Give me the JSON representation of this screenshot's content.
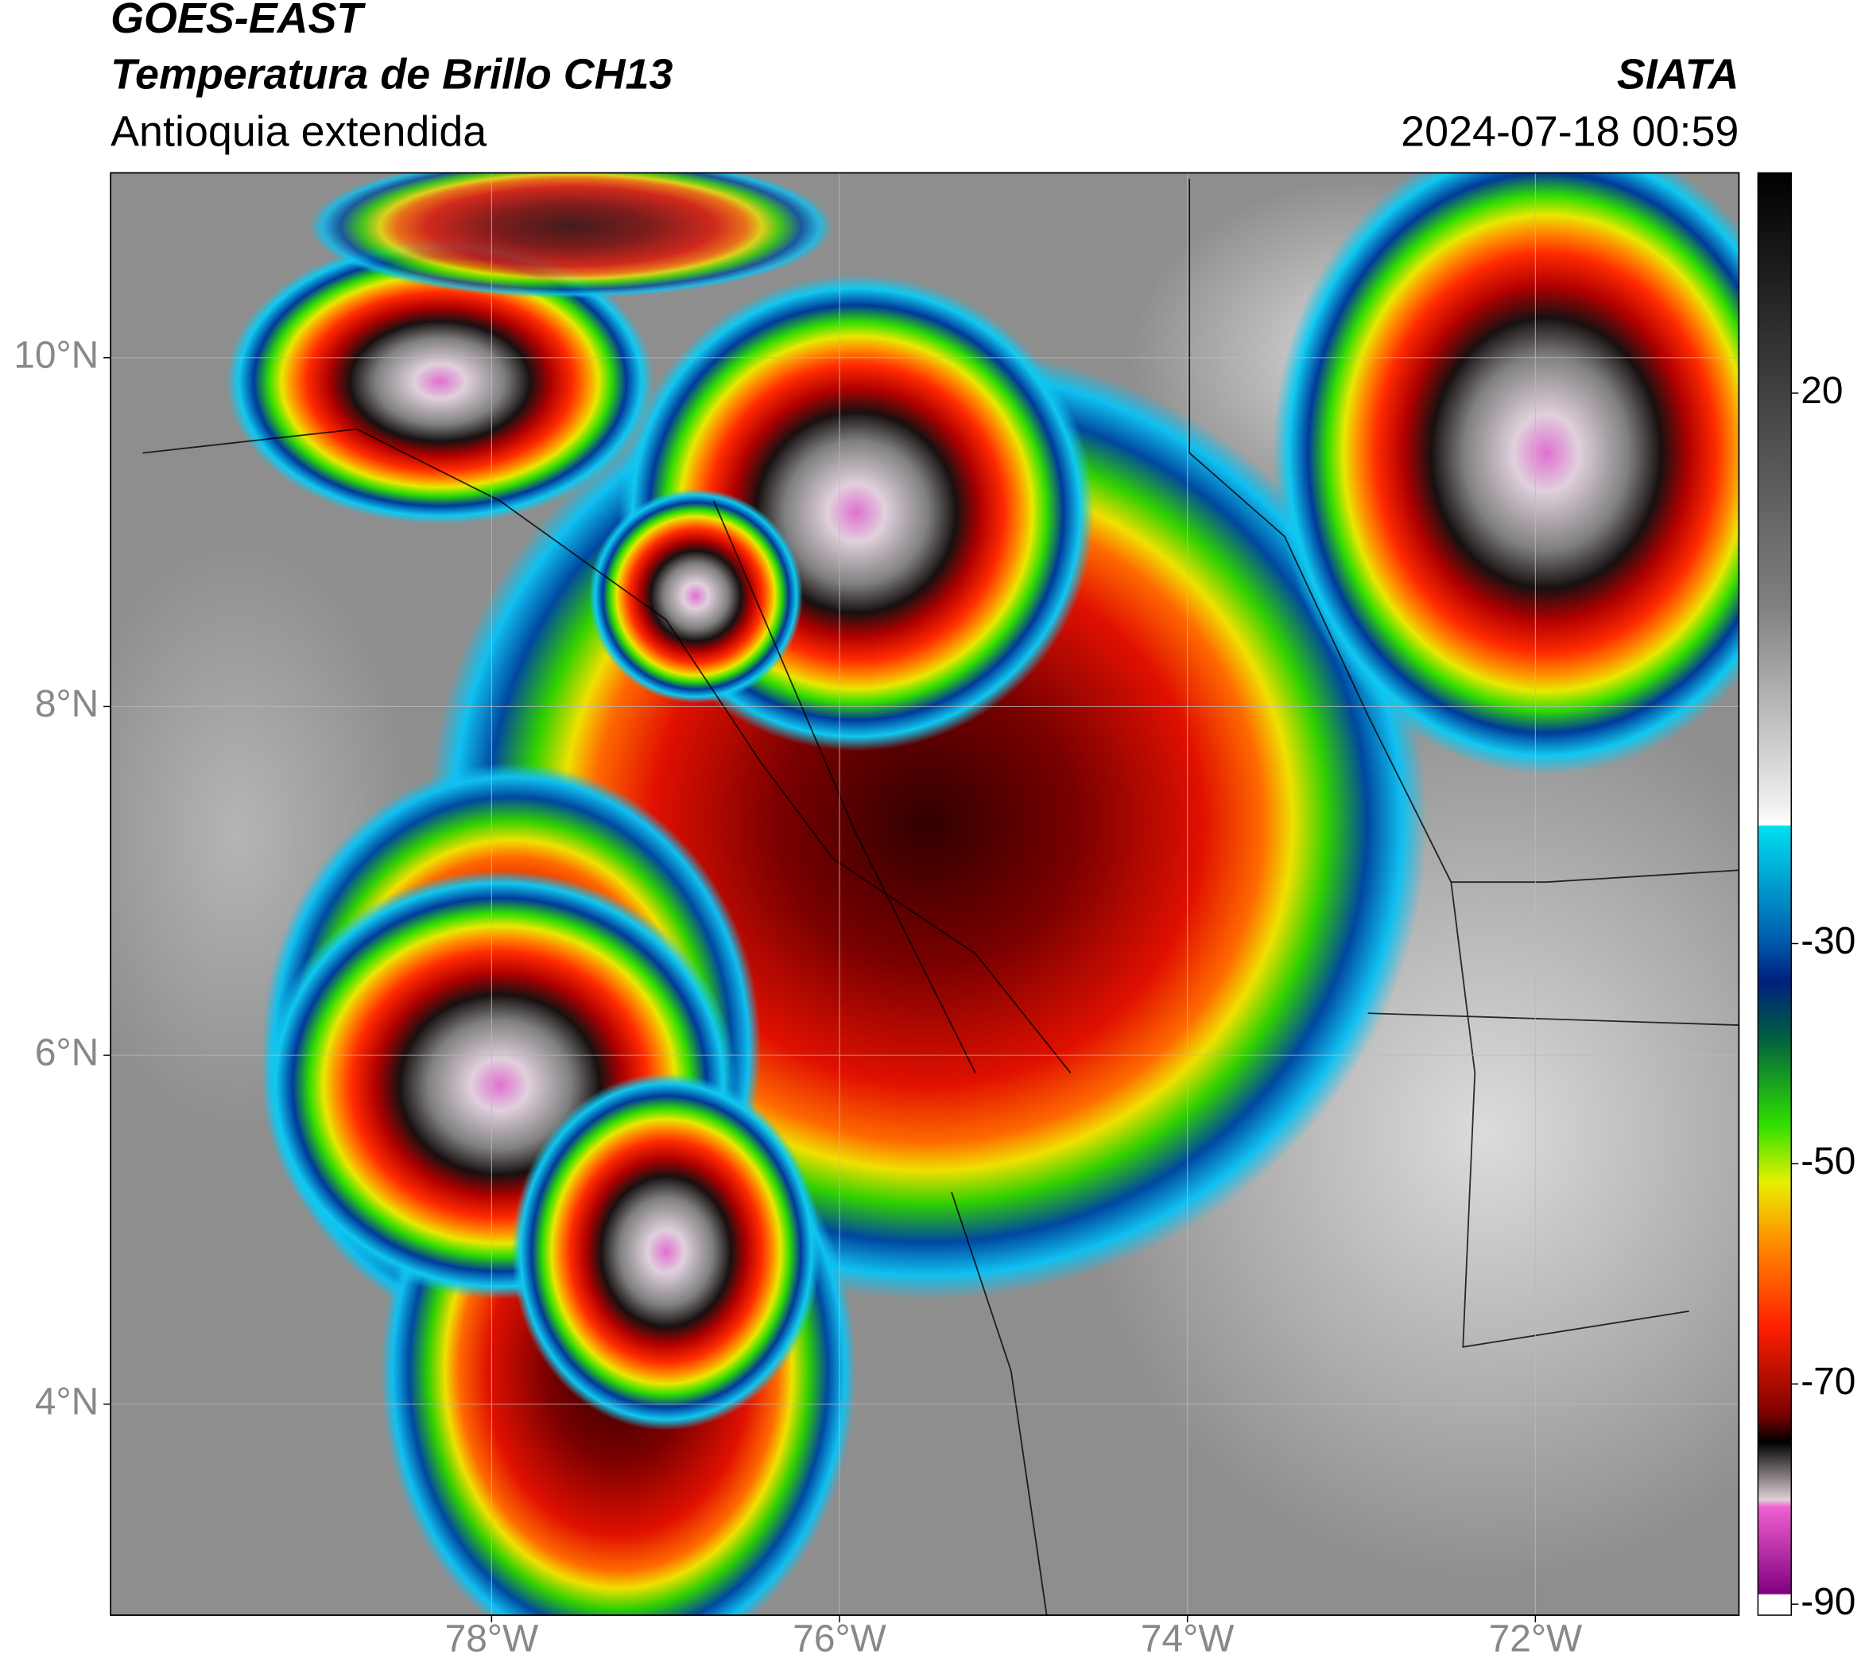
{
  "header": {
    "title": "GOES-EAST",
    "subtitle": "Temperatura de Brillo CH13",
    "region": "Antioquia extendida",
    "source": "SIATA",
    "datetime": "2024-07-18 00:59"
  },
  "map": {
    "xlim": [
      -80.19,
      -70.83
    ],
    "ylim": [
      2.79,
      11.06
    ],
    "xticks": [
      {
        "value": -78,
        "label": "78°W"
      },
      {
        "value": -76,
        "label": "76°W"
      },
      {
        "value": -74,
        "label": "74°W"
      },
      {
        "value": -72,
        "label": "72°W"
      }
    ],
    "yticks": [
      {
        "value": 4,
        "label": "4°N"
      },
      {
        "value": 6,
        "label": "6°N"
      },
      {
        "value": 8,
        "label": "8°N"
      },
      {
        "value": 10,
        "label": "10°N"
      }
    ],
    "grid": true
  },
  "colorbar": {
    "lim": [
      -91,
      40
    ],
    "ticks": [
      20,
      -30,
      -50,
      -70,
      -90
    ]
  }
}
